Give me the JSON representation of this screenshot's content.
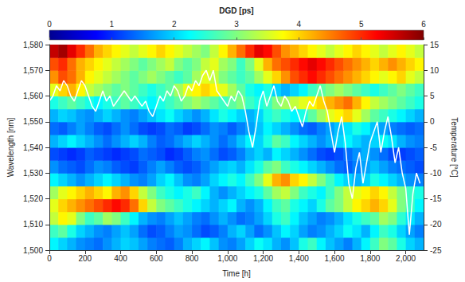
{
  "chart_data": {
    "type": "heatmap",
    "x_label": "Time [h]",
    "y_label": "Wavelength [nm]",
    "y2_label": "Temperature [°C]",
    "xlim": [
      0,
      2100
    ],
    "xticks": [
      0,
      200,
      400,
      600,
      800,
      1000,
      1200,
      1400,
      1600,
      1800,
      2000
    ],
    "ylim": [
      1500,
      1580
    ],
    "yticks": [
      1500,
      1510,
      1520,
      1530,
      1540,
      1550,
      1560,
      1570,
      1580
    ],
    "y2lim": [
      -25,
      15
    ],
    "y2ticks": [
      -25,
      -20,
      -15,
      -10,
      -5,
      0,
      5,
      10,
      15
    ],
    "colorbar": {
      "title": "DGD [ps]",
      "range": [
        0,
        6
      ],
      "ticks": [
        0,
        1,
        2,
        3,
        4,
        5,
        6
      ]
    },
    "x_edges": [
      0,
      50,
      100,
      150,
      200,
      250,
      300,
      350,
      400,
      450,
      500,
      550,
      600,
      650,
      700,
      750,
      800,
      850,
      900,
      950,
      1000,
      1050,
      1100,
      1150,
      1200,
      1250,
      1300,
      1350,
      1400,
      1450,
      1500,
      1550,
      1600,
      1650,
      1700,
      1750,
      1800,
      1850,
      1900,
      1950,
      2000,
      2050,
      2100
    ],
    "y_edges": [
      1500,
      1505,
      1510,
      1515,
      1520,
      1525,
      1530,
      1535,
      1540,
      1545,
      1550,
      1555,
      1560,
      1565,
      1570,
      1575,
      1580
    ],
    "cells": [
      [
        2.2,
        2.0,
        1.8,
        1.6,
        1.5,
        1.4,
        1.6,
        1.8,
        2.0,
        1.9,
        1.7,
        1.5,
        1.4,
        1.3,
        1.5,
        1.8,
        2.0,
        2.2,
        1.9,
        1.6,
        1.5,
        1.7,
        2.0,
        2.3,
        2.1,
        1.8,
        1.6,
        1.9,
        2.4,
        2.6,
        2.2,
        1.9,
        1.7,
        1.5,
        1.8,
        2.2,
        2.6,
        3.0,
        2.8,
        2.4,
        2.0,
        1.8
      ],
      [
        2.6,
        2.8,
        2.4,
        2.0,
        1.8,
        1.6,
        1.5,
        1.7,
        1.9,
        1.7,
        1.4,
        1.2,
        1.3,
        1.5,
        1.7,
        1.6,
        1.4,
        1.2,
        1.3,
        1.5,
        1.8,
        2.0,
        1.7,
        1.4,
        1.6,
        1.9,
        2.2,
        2.0,
        1.7,
        1.5,
        1.6,
        1.8,
        2.0,
        2.3,
        2.1,
        1.8,
        2.2,
        2.6,
        2.4,
        2.0,
        1.7,
        1.5
      ],
      [
        3.4,
        3.8,
        3.6,
        3.0,
        2.6,
        2.8,
        3.2,
        3.0,
        2.6,
        2.2,
        1.8,
        1.6,
        1.5,
        1.7,
        1.9,
        1.7,
        1.5,
        1.4,
        1.6,
        1.8,
        1.6,
        1.4,
        1.5,
        1.7,
        2.0,
        2.4,
        2.6,
        2.2,
        1.9,
        1.7,
        1.5,
        1.6,
        1.8,
        2.1,
        2.4,
        2.6,
        2.8,
        3.2,
        3.0,
        2.5,
        2.1,
        1.8
      ],
      [
        3.6,
        4.0,
        4.2,
        4.4,
        4.6,
        4.8,
        5.0,
        5.2,
        5.0,
        4.6,
        4.0,
        3.4,
        3.0,
        2.8,
        2.6,
        2.4,
        2.2,
        2.0,
        1.8,
        2.0,
        2.2,
        1.8,
        1.6,
        1.8,
        2.2,
        2.6,
        2.8,
        2.4,
        2.2,
        2.0,
        2.4,
        2.8,
        3.0,
        3.4,
        3.8,
        4.0,
        4.2,
        4.0,
        3.6,
        3.0,
        2.6,
        2.2
      ],
      [
        3.2,
        3.6,
        3.8,
        4.0,
        4.2,
        4.0,
        3.8,
        4.2,
        4.4,
        4.0,
        3.4,
        3.0,
        2.6,
        2.4,
        2.2,
        2.4,
        2.6,
        2.2,
        1.8,
        1.6,
        1.8,
        2.0,
        2.2,
        2.4,
        2.8,
        3.2,
        3.4,
        3.0,
        2.6,
        2.4,
        2.2,
        2.6,
        3.0,
        3.4,
        3.6,
        3.8,
        4.0,
        3.8,
        3.4,
        3.0,
        2.6,
        2.4
      ],
      [
        2.2,
        2.0,
        1.8,
        1.6,
        1.8,
        2.0,
        2.2,
        2.0,
        1.8,
        1.6,
        1.5,
        1.7,
        2.0,
        2.2,
        1.9,
        1.6,
        1.5,
        1.7,
        2.0,
        2.2,
        2.4,
        2.2,
        2.6,
        3.0,
        3.6,
        4.2,
        4.4,
        4.0,
        3.8,
        3.4,
        3.0,
        2.6,
        2.2,
        2.0,
        1.8,
        2.0,
        2.4,
        2.2,
        2.0,
        1.8,
        1.6,
        1.5
      ],
      [
        1.6,
        1.4,
        1.3,
        1.2,
        1.4,
        1.6,
        1.5,
        1.3,
        1.2,
        1.1,
        1.3,
        1.5,
        1.7,
        1.5,
        1.3,
        1.2,
        1.3,
        1.5,
        1.7,
        1.9,
        2.0,
        1.8,
        2.1,
        2.4,
        2.8,
        3.0,
        2.6,
        2.4,
        2.2,
        2.0,
        1.8,
        1.6,
        1.4,
        1.3,
        1.5,
        1.7,
        1.9,
        1.7,
        1.5,
        1.4,
        1.3,
        1.2
      ],
      [
        1.2,
        1.1,
        1.0,
        1.1,
        1.3,
        1.2,
        1.1,
        1.0,
        1.1,
        1.2,
        1.4,
        1.3,
        1.2,
        1.0,
        1.1,
        1.3,
        1.5,
        1.6,
        1.4,
        1.2,
        1.3,
        1.5,
        1.8,
        2.0,
        1.8,
        2.2,
        2.0,
        1.8,
        1.6,
        1.4,
        1.2,
        1.1,
        1.2,
        1.4,
        1.6,
        1.8,
        1.6,
        1.4,
        1.2,
        1.1,
        1.2,
        1.3
      ],
      [
        1.8,
        2.0,
        2.2,
        2.0,
        1.8,
        1.6,
        1.4,
        1.6,
        1.8,
        2.0,
        1.8,
        1.5,
        1.3,
        1.4,
        1.6,
        1.8,
        2.0,
        1.8,
        1.6,
        1.4,
        1.6,
        1.9,
        2.2,
        2.0,
        2.4,
        2.8,
        2.6,
        2.2,
        2.0,
        1.8,
        1.6,
        1.8,
        2.0,
        2.2,
        2.0,
        1.8,
        2.0,
        2.3,
        2.1,
        1.8,
        1.6,
        1.5
      ],
      [
        1.4,
        1.3,
        1.5,
        1.7,
        1.5,
        1.3,
        1.2,
        1.4,
        1.6,
        1.4,
        1.2,
        1.1,
        1.2,
        1.4,
        1.3,
        1.1,
        1.2,
        1.4,
        1.6,
        1.5,
        1.3,
        1.5,
        1.7,
        1.9,
        2.2,
        2.0,
        1.8,
        1.6,
        1.4,
        1.3,
        1.5,
        1.7,
        1.9,
        2.1,
        2.4,
        2.2,
        1.9,
        1.7,
        1.5,
        1.4,
        1.3,
        1.4
      ],
      [
        1.8,
        2.0,
        1.9,
        1.7,
        1.6,
        1.8,
        2.0,
        1.8,
        1.6,
        1.5,
        1.7,
        1.9,
        2.1,
        2.3,
        2.0,
        1.8,
        1.6,
        1.8,
        2.1,
        2.4,
        2.2,
        2.0,
        1.8,
        2.0,
        2.4,
        2.6,
        2.4,
        2.2,
        2.4,
        2.8,
        3.2,
        3.6,
        3.8,
        4.0,
        3.6,
        3.2,
        2.8,
        2.6,
        2.4,
        2.2,
        2.0,
        1.8
      ],
      [
        2.4,
        2.6,
        2.8,
        2.6,
        2.4,
        2.2,
        2.4,
        2.6,
        2.8,
        2.6,
        2.4,
        2.2,
        2.4,
        2.6,
        2.8,
        3.0,
        3.2,
        3.0,
        2.8,
        2.6,
        2.8,
        3.0,
        2.6,
        2.4,
        2.6,
        3.0,
        3.2,
        3.4,
        3.6,
        3.8,
        4.0,
        4.2,
        4.4,
        4.6,
        4.2,
        3.8,
        3.4,
        3.2,
        3.0,
        2.8,
        2.6,
        2.4
      ],
      [
        3.6,
        4.0,
        4.2,
        3.8,
        3.4,
        3.2,
        3.0,
        2.8,
        3.0,
        2.8,
        2.6,
        2.4,
        2.6,
        2.8,
        3.2,
        3.6,
        3.8,
        4.0,
        3.8,
        3.6,
        3.2,
        2.8,
        2.4,
        2.2,
        2.4,
        2.0,
        1.8,
        2.0,
        2.2,
        2.6,
        2.8,
        3.0,
        3.2,
        3.0,
        2.8,
        2.6,
        2.4,
        2.6,
        2.8,
        3.0,
        2.8,
        2.6
      ],
      [
        4.4,
        4.8,
        4.6,
        4.2,
        3.8,
        3.6,
        3.4,
        3.2,
        3.0,
        2.8,
        3.0,
        3.2,
        3.0,
        2.8,
        2.6,
        2.8,
        3.2,
        3.6,
        3.4,
        3.0,
        2.8,
        2.6,
        2.8,
        3.2,
        3.6,
        4.0,
        4.4,
        4.8,
        5.0,
        5.2,
        5.0,
        4.8,
        4.6,
        4.4,
        4.2,
        4.0,
        3.8,
        3.6,
        3.8,
        4.0,
        3.6,
        3.4
      ],
      [
        4.8,
        5.0,
        4.6,
        4.2,
        4.0,
        3.8,
        3.6,
        3.4,
        3.2,
        3.0,
        2.8,
        3.0,
        3.2,
        3.4,
        3.0,
        2.8,
        3.0,
        3.4,
        3.6,
        3.2,
        3.0,
        2.6,
        3.0,
        3.6,
        4.2,
        4.6,
        4.8,
        5.0,
        5.2,
        5.4,
        5.2,
        5.0,
        4.8,
        4.6,
        4.4,
        4.2,
        4.0,
        4.2,
        4.4,
        4.2,
        4.0,
        3.8
      ],
      [
        5.6,
        5.8,
        5.4,
        5.0,
        4.6,
        4.2,
        4.0,
        3.8,
        3.6,
        3.4,
        3.6,
        3.8,
        4.0,
        3.8,
        3.6,
        3.4,
        3.2,
        3.0,
        3.4,
        3.8,
        4.2,
        4.6,
        5.0,
        5.4,
        5.2,
        4.8,
        4.4,
        4.2,
        4.0,
        3.8,
        3.6,
        3.4,
        3.6,
        3.8,
        4.0,
        3.8,
        3.6,
        3.4,
        3.6,
        3.8,
        3.6,
        3.4
      ]
    ],
    "series": [
      {
        "type": "line",
        "axis": "y2",
        "color": "#ffffff",
        "x": [
          0,
          20,
          40,
          60,
          80,
          100,
          120,
          140,
          160,
          180,
          200,
          220,
          240,
          260,
          280,
          300,
          320,
          340,
          360,
          380,
          400,
          420,
          440,
          460,
          480,
          500,
          520,
          540,
          560,
          580,
          600,
          620,
          640,
          660,
          680,
          700,
          720,
          740,
          760,
          780,
          800,
          820,
          840,
          860,
          880,
          900,
          920,
          940,
          960,
          980,
          1000,
          1020,
          1040,
          1060,
          1080,
          1100,
          1120,
          1140,
          1160,
          1180,
          1200,
          1220,
          1240,
          1260,
          1280,
          1300,
          1320,
          1340,
          1360,
          1380,
          1400,
          1420,
          1440,
          1460,
          1480,
          1500,
          1520,
          1540,
          1560,
          1580,
          1600,
          1620,
          1640,
          1660,
          1680,
          1700,
          1720,
          1740,
          1760,
          1780,
          1800,
          1820,
          1840,
          1860,
          1880,
          1900,
          1920,
          1940,
          1960,
          1980,
          2000,
          2020,
          2040,
          2060,
          2080
        ],
        "values": [
          4,
          5,
          7,
          6,
          8,
          7,
          5,
          4,
          6,
          8,
          7,
          5,
          3,
          2,
          4,
          6,
          4,
          5,
          3,
          4,
          5,
          6,
          5,
          4,
          5,
          4,
          3,
          4,
          2,
          1,
          3,
          5,
          4,
          6,
          5,
          7,
          6,
          4,
          5,
          7,
          6,
          8,
          7,
          9,
          10,
          8,
          10,
          6,
          5,
          4,
          3,
          5,
          4,
          6,
          5,
          2,
          -2,
          -5,
          -1,
          4,
          6,
          3,
          5,
          7,
          4,
          3,
          5,
          4,
          2,
          3,
          1,
          -1,
          2,
          4,
          3,
          5,
          7,
          4,
          2,
          -2,
          -6,
          -2,
          1,
          -4,
          -12,
          -15,
          -9,
          -6,
          -12,
          -8,
          -4,
          -2,
          0,
          -6,
          -2,
          1,
          -3,
          -8,
          -5,
          -10,
          -13,
          -22,
          -14,
          -10,
          -12
        ]
      }
    ]
  }
}
